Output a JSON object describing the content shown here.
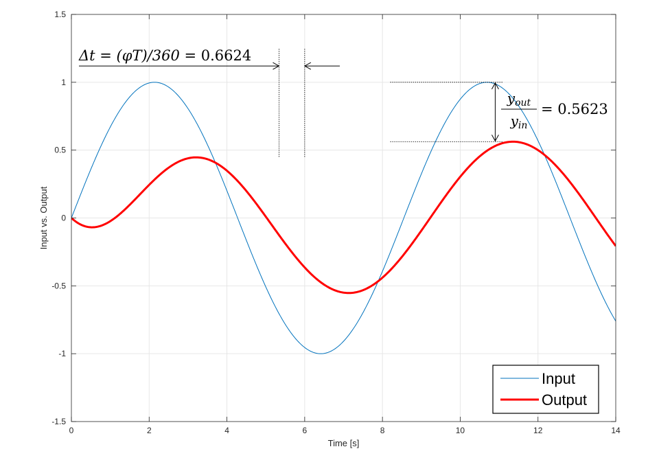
{
  "chart_data": {
    "type": "line",
    "xlabel": "Time [s]",
    "ylabel": "Input vs. Output",
    "xlim": [
      0,
      14
    ],
    "ylim": [
      -1.5,
      1.5
    ],
    "xticks": [
      0,
      2,
      4,
      6,
      8,
      10,
      12,
      14
    ],
    "xtick_labels": [
      "0",
      "2",
      "4",
      "6",
      "8",
      "10",
      "12",
      "14"
    ],
    "yticks": [
      -1.5,
      -1,
      -0.5,
      0,
      0.5,
      1,
      1.5
    ],
    "ytick_labels": [
      "-1.5",
      "-1",
      "-0.5",
      "0",
      "0.5",
      "1",
      "1.5"
    ],
    "grid": true,
    "legend_position": "bottom-right",
    "series": [
      {
        "name": "Input",
        "color": "#0072BD",
        "style": "thin",
        "model": "sine",
        "amplitude": 1.0,
        "period": 8.55,
        "phase_rad": 0.0,
        "t_start": 0,
        "t_end": 14,
        "samples": 561
      },
      {
        "name": "Output",
        "color": "#FF0000",
        "style": "thick",
        "model": "second_order_response",
        "amplitude": 0.5623,
        "period": 8.55,
        "delay": 0.6624,
        "damping": 0.5,
        "natural_freq": 1.0,
        "t_start": 0,
        "t_end": 14,
        "samples": 561
      }
    ],
    "annotations": {
      "delta_t": {
        "text_prefix": "Δt = (φT)/360 = ",
        "value": "0.6624",
        "arrow_x_left": 5.34,
        "arrow_x_right": 6.0,
        "arrow_y": 1.12,
        "input_peak_x": 5.34,
        "output_peak_x": 6.0,
        "ref_y_bottom": 0.45
      },
      "ratio": {
        "numerator": "y",
        "numerator_sub": "out",
        "denominator": "y",
        "denominator_sub": "in",
        "value_text": "= 0.5623",
        "input_level": 1.0,
        "output_level": 0.5623,
        "line_x_start": 8.2,
        "line_x_end": 11.1,
        "arrow_x": 10.9
      }
    }
  }
}
